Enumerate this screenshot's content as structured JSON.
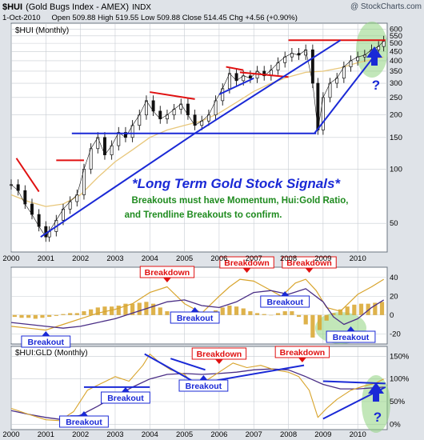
{
  "header": {
    "ticker": "$HUI",
    "name": "(Gold Bugs Index - AMEX)",
    "exchange": "INDX",
    "watermark": "@ StockCharts.com",
    "date": "1-Oct-2010",
    "quote": "Open 509.88  High 519.55  Low 509.88  Close 514.45  Chg +4.56 (+0.90%)"
  },
  "colors": {
    "frame": "#dfe3e8",
    "panel": "#ffffff",
    "grid": "#c7ccd2",
    "price": "#111111",
    "ma_long": "#e8c77b",
    "trend_blue": "#1a29d6",
    "trend_red": "#e01010",
    "title_blue": "#1a29d6",
    "subtitle_green": "#1f8b1f",
    "osc_gold": "#d8a42c",
    "osc_purple": "#4a2e86",
    "highlight_green": "#8fd480"
  },
  "annotations": {
    "main_title": "*Long Term Gold Stock Signals*",
    "sub_line1": "Breakouts must have Momentum, Hui:Gold Ratio,",
    "sub_line2": "and Trendline Breakouts to confirm.",
    "question": "?"
  },
  "chart_data": [
    {
      "type": "line",
      "title": "$HUI (Monthly)",
      "y_scale": "log",
      "ylim": [
        35,
        640
      ],
      "xlim": [
        2000,
        2010.85
      ],
      "y_ticks": [
        50,
        100,
        150,
        200,
        250,
        300,
        350,
        400,
        450,
        500,
        550,
        600
      ],
      "x_ticks": [
        "2000",
        "2001",
        "2002",
        "2003",
        "2004",
        "2005",
        "2006",
        "2007",
        "2008",
        "2009",
        "2010"
      ],
      "series": [
        {
          "role": "price",
          "x": [
            2000.0,
            2000.2,
            2000.4,
            2000.6,
            2000.8,
            2001.0,
            2001.1,
            2001.3,
            2001.5,
            2001.7,
            2001.9,
            2002.1,
            2002.3,
            2002.5,
            2002.7,
            2002.9,
            2003.1,
            2003.3,
            2003.5,
            2003.7,
            2003.9,
            2004.1,
            2004.3,
            2004.5,
            2004.7,
            2004.9,
            2005.1,
            2005.3,
            2005.5,
            2005.7,
            2005.9,
            2006.1,
            2006.3,
            2006.5,
            2006.7,
            2006.9,
            2007.1,
            2007.3,
            2007.5,
            2007.7,
            2007.9,
            2008.1,
            2008.3,
            2008.5,
            2008.7,
            2008.85,
            2009.0,
            2009.2,
            2009.4,
            2009.6,
            2009.8,
            2010.0,
            2010.2,
            2010.4,
            2010.6,
            2010.75
          ],
          "values": [
            82,
            76,
            64,
            56,
            48,
            42,
            45,
            52,
            60,
            66,
            72,
            100,
            130,
            150,
            120,
            135,
            160,
            150,
            175,
            200,
            240,
            210,
            190,
            200,
            215,
            230,
            200,
            175,
            185,
            200,
            240,
            280,
            340,
            310,
            330,
            320,
            350,
            330,
            355,
            390,
            420,
            440,
            430,
            460,
            300,
            165,
            250,
            300,
            320,
            370,
            400,
            420,
            430,
            460,
            480,
            514
          ]
        },
        {
          "role": "long moving average",
          "x": [
            2000.0,
            2000.5,
            2001.0,
            2001.5,
            2002.0,
            2002.5,
            2003.0,
            2003.5,
            2004.0,
            2004.5,
            2005.0,
            2005.5,
            2006.0,
            2006.5,
            2007.0,
            2007.5,
            2008.0,
            2008.5,
            2009.0,
            2009.5,
            2010.0,
            2010.75
          ],
          "values": [
            72,
            66,
            62,
            64,
            72,
            90,
            110,
            128,
            150,
            165,
            175,
            185,
            205,
            235,
            270,
            300,
            325,
            345,
            350,
            365,
            390,
            420
          ]
        }
      ],
      "trendlines": [
        {
          "color": "trend_red",
          "x": [
            2000.15,
            2000.8
          ],
          "y": [
            115,
            75
          ]
        },
        {
          "color": "trend_red",
          "x": [
            2001.3,
            2002.1
          ],
          "y": [
            112,
            112
          ]
        },
        {
          "color": "trend_red",
          "x": [
            2004.0,
            2005.3
          ],
          "y": [
            268,
            245
          ]
        },
        {
          "color": "trend_red",
          "x": [
            2006.2,
            2006.7
          ],
          "y": [
            370,
            355
          ]
        },
        {
          "color": "trend_red",
          "x": [
            2006.6,
            2008.0
          ],
          "y": [
            345,
            325
          ]
        },
        {
          "color": "trend_red",
          "x": [
            2008.0,
            2010.8
          ],
          "y": [
            520,
            520
          ]
        },
        {
          "color": "trend_blue",
          "x": [
            2000.85,
            2005.3
          ],
          "y": [
            42,
            158
          ]
        },
        {
          "color": "trend_blue",
          "x": [
            2005.3,
            2009.5
          ],
          "y": [
            158,
            520
          ]
        },
        {
          "color": "trend_blue",
          "x": [
            2001.75,
            2008.8
          ],
          "y": [
            158,
            158
          ]
        },
        {
          "color": "trend_blue",
          "x": [
            2008.75,
            2010.5
          ],
          "y": [
            158,
            430
          ]
        },
        {
          "color": "trend_blue",
          "x": [
            2006.0,
            2007.0
          ],
          "y": [
            260,
            320
          ]
        }
      ]
    },
    {
      "type": "line",
      "title": "",
      "ylim": [
        -30,
        50
      ],
      "y_ticks": [
        -20,
        0,
        20,
        40
      ],
      "labels": [
        {
          "text": "Breakdown",
          "color": "trend_red",
          "x": 2004.5
        },
        {
          "text": "Breakdown",
          "color": "trend_red",
          "x": 2006.8
        },
        {
          "text": "Breakdown",
          "color": "trend_red",
          "x": 2008.6
        },
        {
          "text": "Breakout",
          "color": "trend_blue",
          "x": 2001.0
        },
        {
          "text": "Breakout",
          "color": "trend_blue",
          "x": 2005.3
        },
        {
          "text": "Breakout",
          "color": "trend_blue",
          "x": 2007.9
        },
        {
          "text": "Breakout",
          "color": "trend_blue",
          "x": 2009.8
        }
      ],
      "series": [
        {
          "role": "histogram",
          "x": [
            2000.1,
            2000.3,
            2000.5,
            2000.7,
            2000.9,
            2001.1,
            2001.3,
            2001.5,
            2001.7,
            2001.9,
            2002.1,
            2002.3,
            2002.5,
            2002.7,
            2002.9,
            2003.1,
            2003.3,
            2003.5,
            2003.7,
            2003.9,
            2004.1,
            2004.3,
            2004.5,
            2004.7,
            2004.9,
            2005.1,
            2005.3,
            2005.5,
            2005.7,
            2005.9,
            2006.1,
            2006.3,
            2006.5,
            2006.7,
            2006.9,
            2007.1,
            2007.3,
            2007.5,
            2007.7,
            2007.9,
            2008.1,
            2008.3,
            2008.5,
            2008.7,
            2008.9,
            2009.1,
            2009.3,
            2009.5,
            2009.7,
            2009.9,
            2010.1,
            2010.3,
            2010.5,
            2010.7
          ],
          "values": [
            -2,
            -3,
            -3,
            -4,
            -3,
            -2,
            -1,
            1,
            2,
            2,
            4,
            6,
            8,
            9,
            9,
            10,
            12,
            12,
            13,
            14,
            12,
            8,
            4,
            1,
            -1,
            -3,
            -2,
            1,
            3,
            5,
            8,
            10,
            9,
            7,
            4,
            2,
            1,
            0,
            2,
            4,
            4,
            -2,
            -10,
            -24,
            -16,
            -6,
            2,
            6,
            9,
            11,
            12,
            12,
            13,
            14
          ]
        },
        {
          "role": "fast line",
          "x": [
            2000.0,
            2000.5,
            2001.0,
            2001.5,
            2002.0,
            2002.5,
            2003.0,
            2003.5,
            2004.0,
            2004.5,
            2005.0,
            2005.5,
            2006.0,
            2006.3,
            2006.6,
            2007.0,
            2007.4,
            2007.8,
            2008.2,
            2008.5,
            2008.8,
            2009.1,
            2009.5,
            2010.0,
            2010.4,
            2010.75
          ],
          "values": [
            -12,
            -14,
            -16,
            -10,
            -4,
            2,
            6,
            12,
            24,
            30,
            12,
            2,
            20,
            30,
            38,
            36,
            28,
            20,
            34,
            38,
            26,
            8,
            4,
            22,
            30,
            38
          ]
        },
        {
          "role": "slow line",
          "x": [
            2000.0,
            2000.5,
            2001.0,
            2001.5,
            2002.0,
            2002.5,
            2003.0,
            2003.5,
            2004.0,
            2004.5,
            2005.0,
            2005.5,
            2006.0,
            2006.5,
            2007.0,
            2007.5,
            2008.0,
            2008.5,
            2009.0,
            2009.3,
            2009.6,
            2010.0,
            2010.4,
            2010.75
          ],
          "values": [
            -8,
            -10,
            -12,
            -14,
            -12,
            -8,
            -4,
            2,
            8,
            14,
            16,
            10,
            8,
            14,
            24,
            26,
            22,
            28,
            14,
            -2,
            -10,
            -4,
            8,
            16
          ]
        }
      ]
    },
    {
      "type": "line",
      "title": "$HUI:GLD (Monthly)",
      "ylim": [
        -0.1,
        1.7
      ],
      "y_ticks": [
        "0%",
        "50%",
        "100%",
        "150%"
      ],
      "labels": [
        {
          "text": "Breakdown",
          "color": "trend_red",
          "x": 2006.0
        },
        {
          "text": "Breakdown",
          "color": "trend_red",
          "x": 2008.4
        },
        {
          "text": "Breakout",
          "color": "trend_blue",
          "x": 2002.1
        },
        {
          "text": "Breakout",
          "color": "trend_blue",
          "x": 2003.3
        },
        {
          "text": "Breakout",
          "color": "trend_blue",
          "x": 2005.55
        }
      ],
      "series": [
        {
          "role": "ratio",
          "x": [
            2000.0,
            2000.5,
            2001.0,
            2001.4,
            2001.8,
            2002.2,
            2002.6,
            2003.0,
            2003.4,
            2003.8,
            2004.0,
            2004.3,
            2004.6,
            2005.0,
            2005.3,
            2005.6,
            2006.0,
            2006.4,
            2006.8,
            2007.2,
            2007.6,
            2008.0,
            2008.3,
            2008.6,
            2008.85,
            2009.1,
            2009.4,
            2009.8,
            2010.2,
            2010.5,
            2010.75
          ],
          "values": [
            0.35,
            0.22,
            0.1,
            0.08,
            0.28,
            0.75,
            0.9,
            1.05,
            0.95,
            1.3,
            1.55,
            1.35,
            1.2,
            1.1,
            0.85,
            0.95,
            1.15,
            1.35,
            1.25,
            1.3,
            1.2,
            1.15,
            1.05,
            0.75,
            0.15,
            0.35,
            0.55,
            0.75,
            0.85,
            0.9,
            1.0
          ]
        },
        {
          "role": "moving average",
          "x": [
            2000.0,
            2000.5,
            2001.0,
            2001.5,
            2002.0,
            2002.5,
            2003.0,
            2003.5,
            2004.0,
            2004.5,
            2005.0,
            2005.5,
            2006.0,
            2006.5,
            2007.0,
            2007.5,
            2008.0,
            2008.5,
            2009.0,
            2009.5,
            2010.0,
            2010.75
          ],
          "values": [
            0.3,
            0.22,
            0.15,
            0.1,
            0.2,
            0.4,
            0.62,
            0.82,
            1.0,
            1.1,
            1.12,
            1.1,
            1.12,
            1.15,
            1.2,
            1.22,
            1.2,
            1.05,
            0.88,
            0.78,
            0.78,
            0.82
          ]
        }
      ],
      "trendlines": [
        {
          "color": "trend_blue",
          "x": [
            2001.7,
            2002.1
          ],
          "y": [
            0.18,
            0.18
          ]
        },
        {
          "color": "trend_blue",
          "x": [
            2002.1,
            2004.0
          ],
          "y": [
            0.82,
            0.82
          ]
        },
        {
          "color": "trend_blue",
          "x": [
            2003.85,
            2005.55
          ],
          "y": [
            1.55,
            0.82
          ]
        },
        {
          "color": "trend_blue",
          "x": [
            2005.55,
            2008.45
          ],
          "y": [
            0.92,
            1.3
          ]
        },
        {
          "color": "trend_blue",
          "x": [
            2004.6,
            2005.6
          ],
          "y": [
            1.45,
            1.2
          ]
        },
        {
          "color": "trend_blue",
          "x": [
            2009.0,
            2010.8
          ],
          "y": [
            0.12,
            0.82
          ]
        },
        {
          "color": "trend_blue",
          "x": [
            2009.0,
            2010.8
          ],
          "y": [
            0.95,
            0.9
          ]
        }
      ]
    }
  ]
}
